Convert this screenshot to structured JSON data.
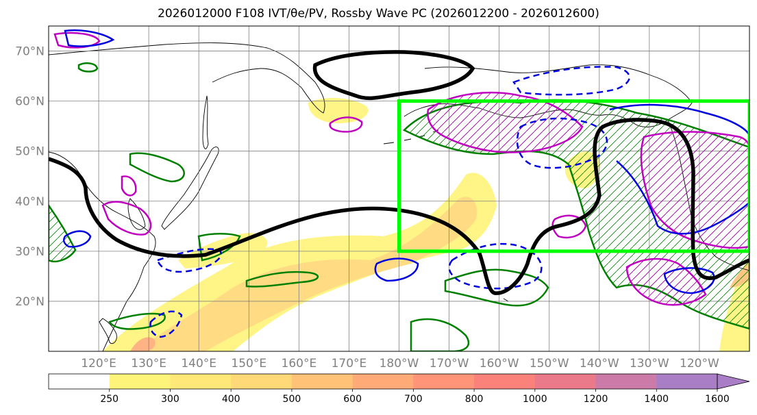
{
  "title": "2026012000 F108 IVT/θe/PV, Rossby Wave PC (2026012200 - 2026012600)",
  "map": {
    "projection": "PlateCarree",
    "lon_range": [
      110,
      250
    ],
    "lat_range": [
      10,
      75
    ],
    "lat_ticks": [
      {
        "lat": 70,
        "label": "70°N"
      },
      {
        "lat": 60,
        "label": "60°N"
      },
      {
        "lat": 50,
        "label": "50°N"
      },
      {
        "lat": 40,
        "label": "40°N"
      },
      {
        "lat": 30,
        "label": "30°N"
      },
      {
        "lat": 20,
        "label": "20°N"
      }
    ],
    "lon_ticks": [
      {
        "lon": 120,
        "label": "120°E"
      },
      {
        "lon": 130,
        "label": "130°E"
      },
      {
        "lon": 140,
        "label": "140°E"
      },
      {
        "lon": 150,
        "label": "150°E"
      },
      {
        "lon": 160,
        "label": "160°E"
      },
      {
        "lon": 170,
        "label": "170°E"
      },
      {
        "lon": 180,
        "label": "180°W"
      },
      {
        "lon": 190,
        "label": "170°W"
      },
      {
        "lon": 200,
        "label": "160°W"
      },
      {
        "lon": 210,
        "label": "150°W"
      },
      {
        "lon": 220,
        "label": "140°W"
      },
      {
        "lon": 230,
        "label": "130°W"
      },
      {
        "lon": 240,
        "label": "120°W"
      }
    ],
    "gridlines": true,
    "analysis_box": {
      "lon_min": 180,
      "lon_max": 250,
      "lat_min": 30,
      "lat_max": 60,
      "color": "#00ff00"
    }
  },
  "colorbar": {
    "levels": [
      250,
      300,
      400,
      500,
      600,
      700,
      800,
      1000,
      1200,
      1400,
      1600
    ],
    "tick_labels": [
      "250",
      "300",
      "400",
      "500",
      "600",
      "700",
      "800",
      "1000",
      "1200",
      "1400",
      "1600"
    ],
    "colors": [
      "#ffffff",
      "#fff47a",
      "#ffe878",
      "#ffd877",
      "#ffc277",
      "#ffaa77",
      "#ff9478",
      "#fb827a",
      "#ea7a8a",
      "#cc7aa8",
      "#a97ec6"
    ],
    "extend": "max"
  },
  "colors": {
    "pv_contour": "#000000",
    "green_contour": "#008000",
    "magenta_contour": "#c000c0",
    "blue_contour": "#0000e0"
  }
}
